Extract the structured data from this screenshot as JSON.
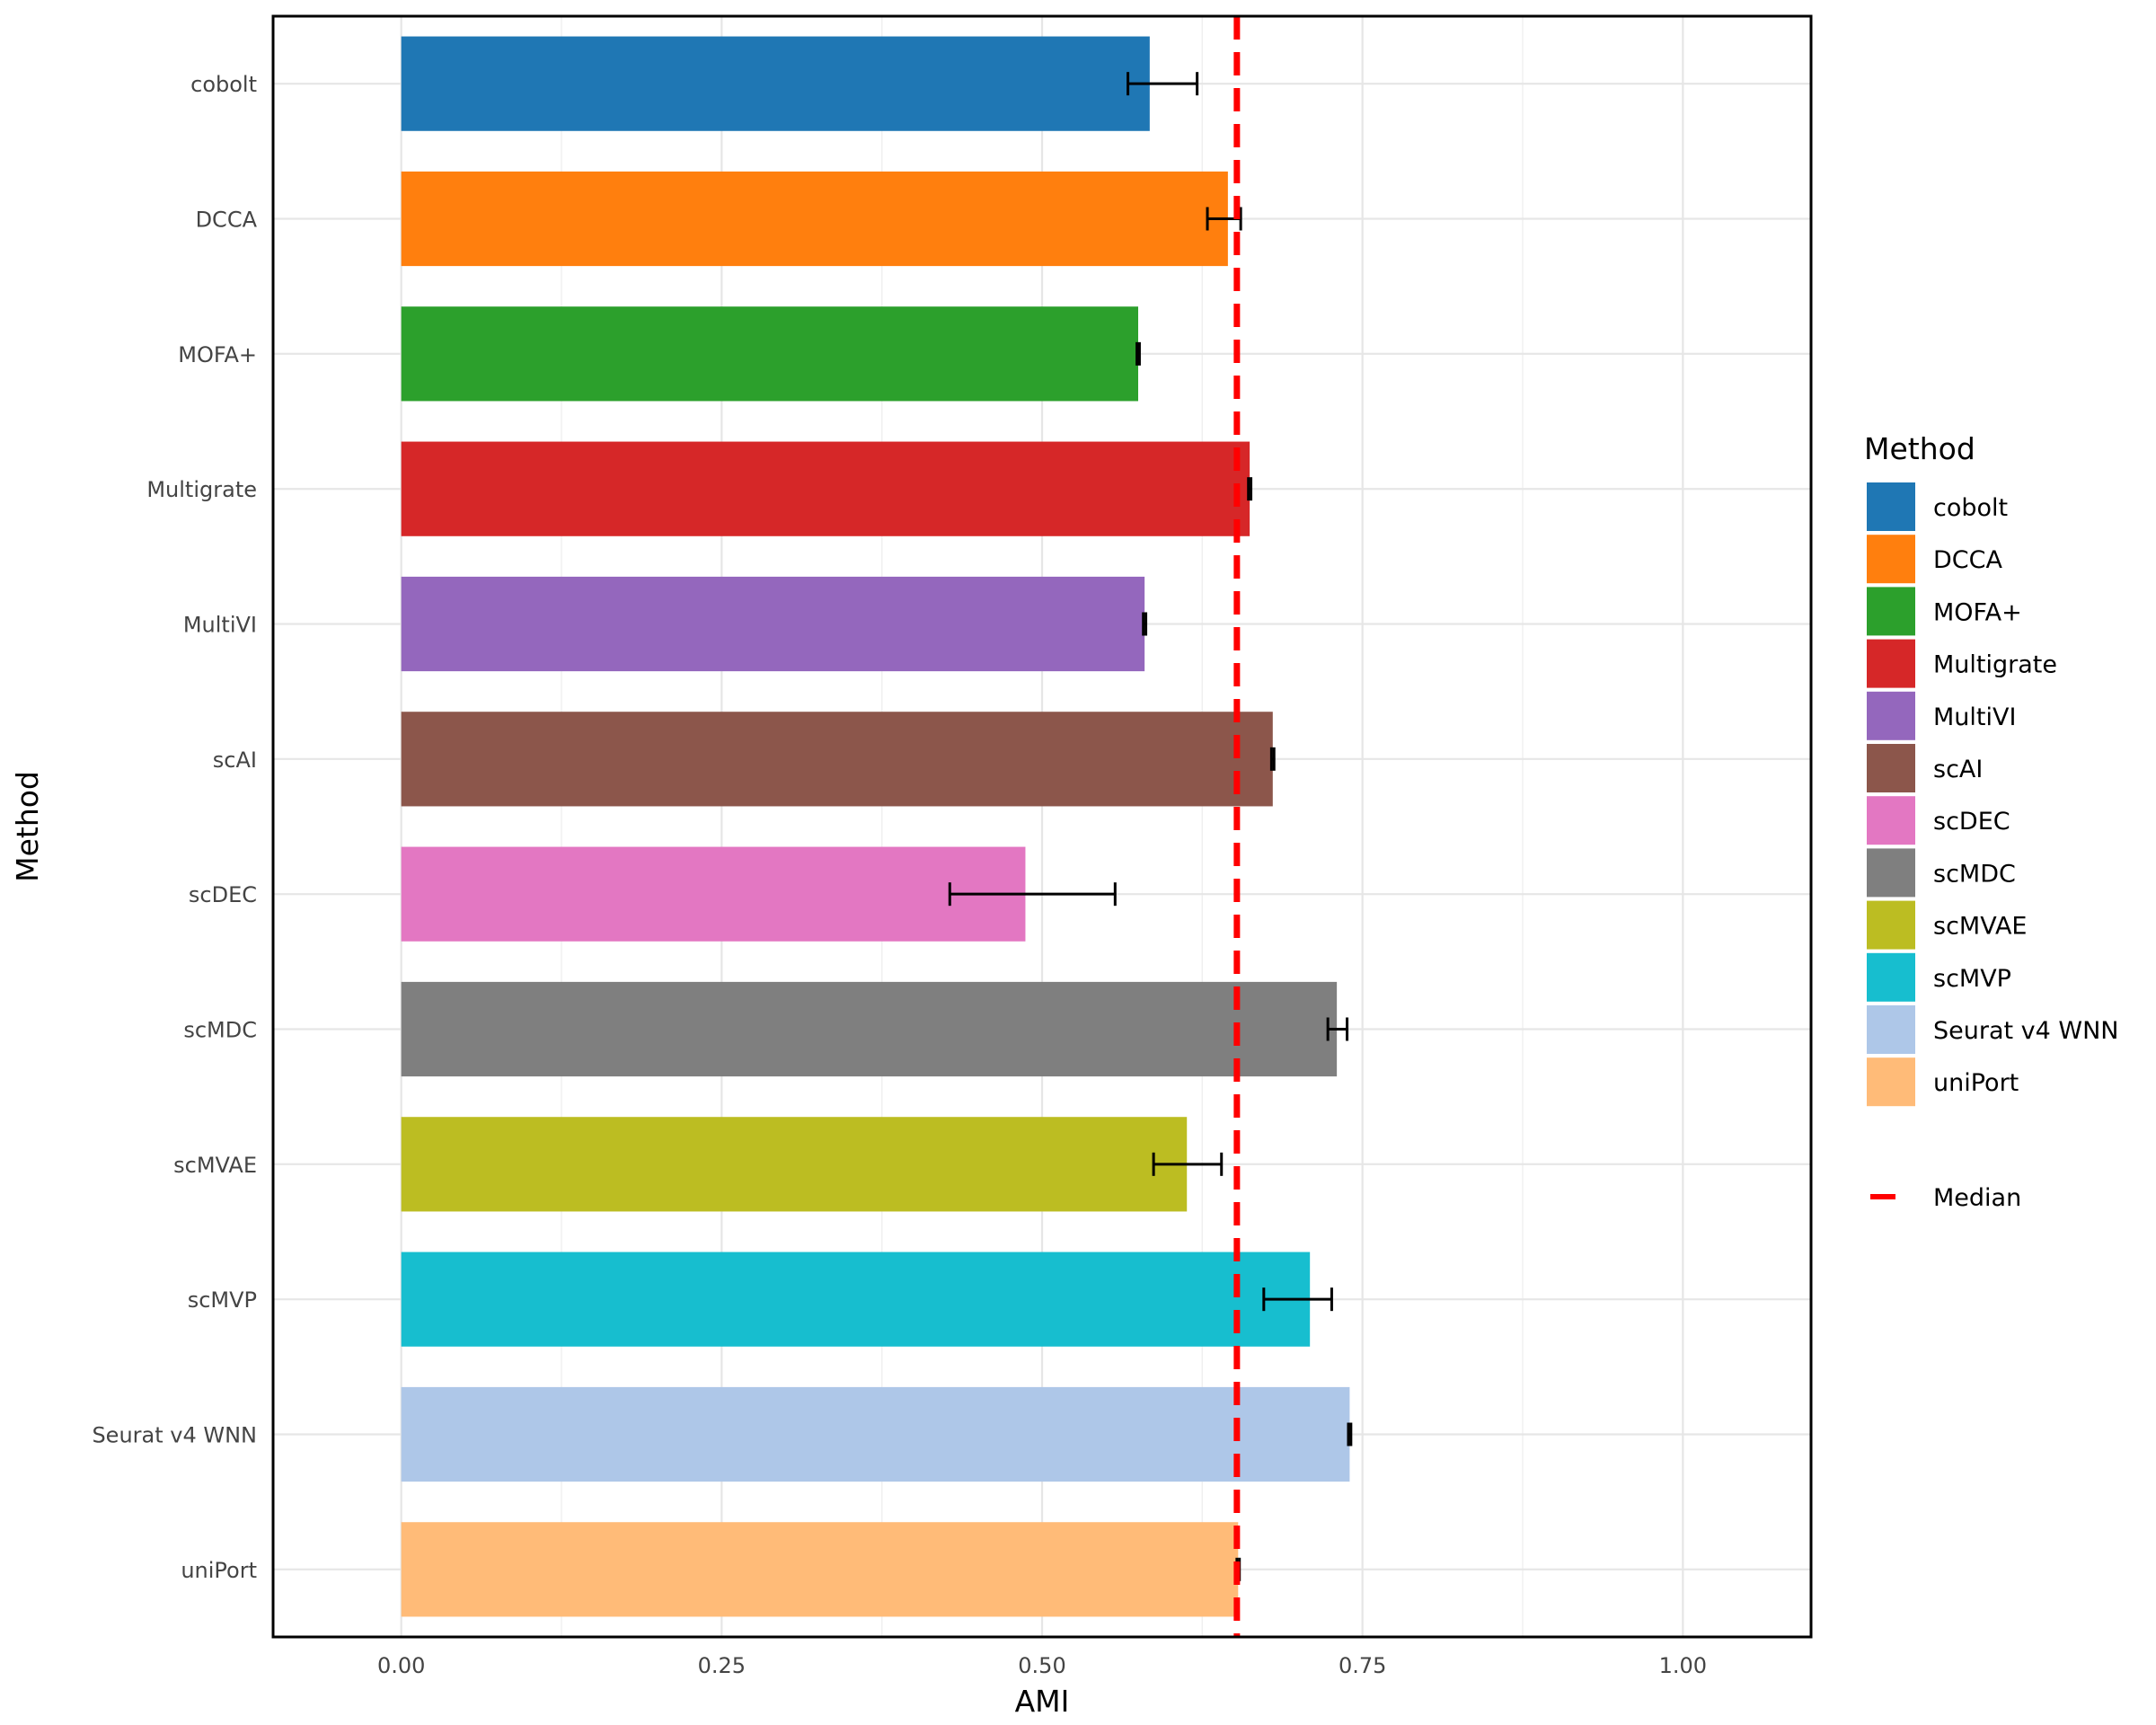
{
  "chart_data": {
    "type": "bar",
    "orientation": "horizontal",
    "xlabel": "AMI",
    "ylabel": "Method",
    "xlim": [
      -0.1,
      1.1
    ],
    "x_ticks": [
      0.0,
      0.25,
      0.5,
      0.75,
      1.0
    ],
    "x_tick_labels": [
      "0.00",
      "0.25",
      "0.50",
      "0.75",
      "1.00"
    ],
    "categories": [
      "cobolt",
      "DCCA",
      "MOFA+",
      "Multigrate",
      "MultiVI",
      "scAI",
      "scDEC",
      "scMDC",
      "scMVAE",
      "scMVP",
      "Seurat v4 WNN",
      "uniPort"
    ],
    "values": [
      0.584,
      0.645,
      0.575,
      0.662,
      0.58,
      0.68,
      0.487,
      0.73,
      0.613,
      0.709,
      0.74,
      0.653
    ],
    "error_low": [
      0.567,
      0.629,
      0.574,
      0.661,
      0.579,
      0.679,
      0.428,
      0.723,
      0.587,
      0.673,
      0.739,
      0.652
    ],
    "error_high": [
      0.621,
      0.655,
      0.576,
      0.663,
      0.581,
      0.681,
      0.557,
      0.738,
      0.64,
      0.726,
      0.741,
      0.654
    ],
    "colors": [
      "#1f77b4",
      "#ff7f0e",
      "#2ca02c",
      "#d62728",
      "#9467bd",
      "#8c564b",
      "#e377c2",
      "#7f7f7f",
      "#bcbd22",
      "#17becf",
      "#aec7e8",
      "#ffbb78"
    ],
    "median": 0.652,
    "median_color": "#ff0000",
    "legend": {
      "title": "Method",
      "position": "right",
      "entries": [
        "cobolt",
        "DCCA",
        "MOFA+",
        "Multigrate",
        "MultiVI",
        "scAI",
        "scDEC",
        "scMDC",
        "scMVAE",
        "scMVP",
        "Seurat v4 WNN",
        "uniPort"
      ],
      "median_label": "Median"
    },
    "grid": true
  }
}
